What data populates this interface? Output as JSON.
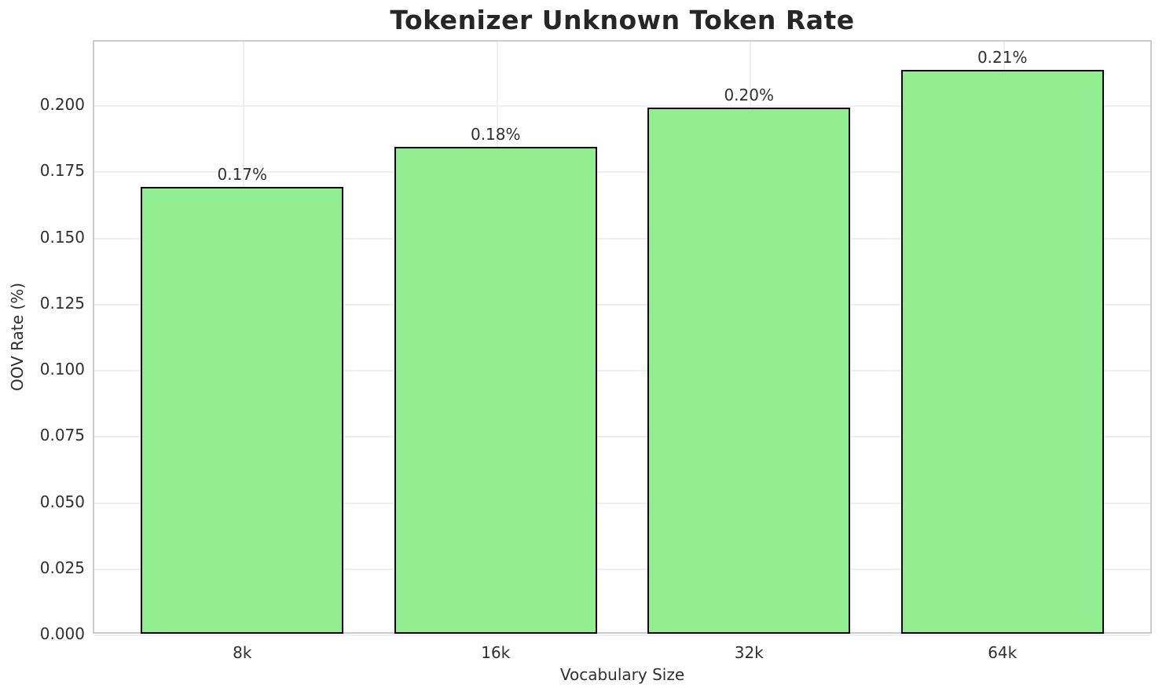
{
  "figure": {
    "title": "Tokenizer Unknown Token Rate"
  },
  "chart_data": {
    "type": "bar",
    "title": "Tokenizer Unknown Token Rate",
    "xlabel": "Vocabulary Size",
    "ylabel": "OOV Rate (%)",
    "categories": [
      "8k",
      "16k",
      "32k",
      "64k"
    ],
    "values": [
      0.169,
      0.184,
      0.199,
      0.213
    ],
    "bar_labels": [
      "0.17%",
      "0.18%",
      "0.20%",
      "0.21%"
    ],
    "ylim": [
      0,
      0.2244
    ],
    "yticks": [
      0.0,
      0.025,
      0.05,
      0.075,
      0.1,
      0.125,
      0.15,
      0.175,
      0.2
    ],
    "ytick_labels": [
      "0.000",
      "0.025",
      "0.050",
      "0.075",
      "0.100",
      "0.125",
      "0.150",
      "0.175",
      "0.200"
    ],
    "grid": true,
    "legend": null,
    "colors": {
      "bar_fill": "#90EE90",
      "bar_edge": "#000000",
      "grid": "#efefef",
      "spine": "#cccccc",
      "title_text": "#262626",
      "tick_text": "#303030"
    }
  }
}
